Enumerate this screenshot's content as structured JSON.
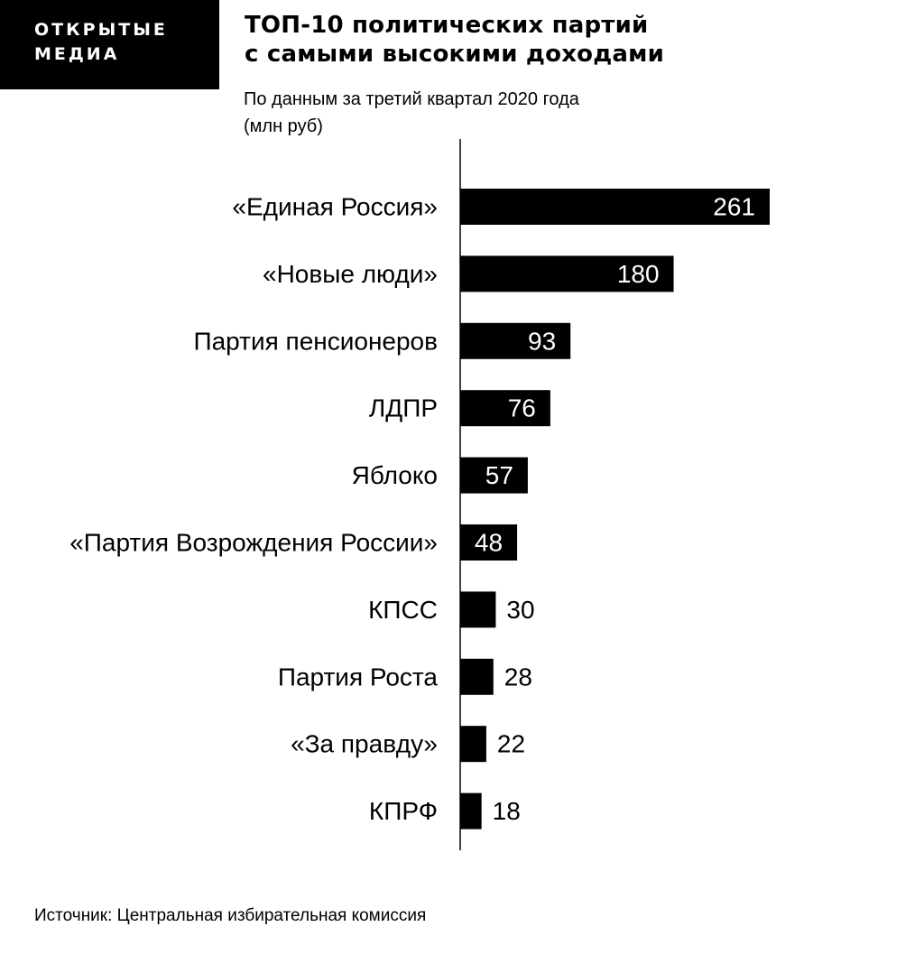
{
  "brand": {
    "line1": "ОТКРЫТЫЕ",
    "line2": "МЕДИА"
  },
  "header": {
    "title_line1": "ТОП-10 политических партий",
    "title_line2": "с самыми высокими доходами",
    "subtitle_line1": "По данным за третий квартал 2020 года",
    "subtitle_line2": "(млн руб)"
  },
  "chart_data": {
    "type": "bar",
    "orientation": "horizontal",
    "categories": [
      "«Единая Россия»",
      "«Новые люди»",
      "Партия пенсионеров",
      "ЛДПР",
      "Яблоко",
      "«Партия Возрождения России»",
      "КПСС",
      "Партия Роста",
      "«За правду»",
      "КПРФ"
    ],
    "values": [
      261,
      180,
      93,
      76,
      57,
      48,
      30,
      28,
      22,
      18
    ],
    "title": "ТОП-10 политических партий с самыми высокими доходами",
    "xlabel": "",
    "ylabel": "",
    "xlim": [
      0,
      261
    ],
    "grid": false,
    "bar_color": "#000000"
  },
  "footer": {
    "source": "Источник: Центральная избирательная комиссия"
  }
}
